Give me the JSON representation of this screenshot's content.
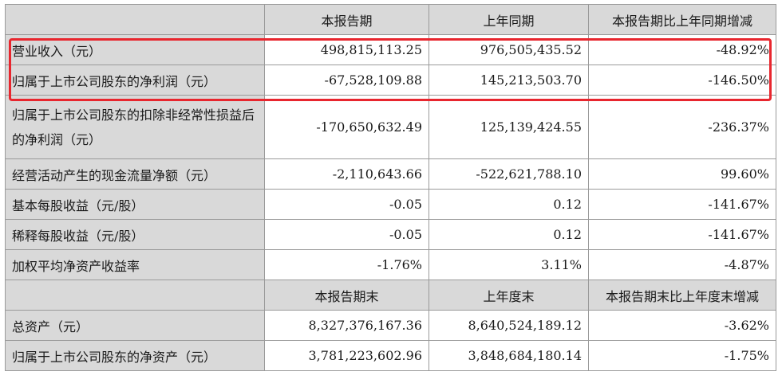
{
  "table": {
    "header1": [
      "本报告期",
      "上年同期",
      "本报告期比上年同期增减"
    ],
    "rows1": [
      {
        "label": "营业收入（元）",
        "cur": "498,815,113.25",
        "prev": "976,505,435.52",
        "chg": "-48.92%"
      },
      {
        "label": "归属于上市公司股东的净利润（元）",
        "cur": "-67,528,109.88",
        "prev": "145,213,503.70",
        "chg": "-146.50%"
      },
      {
        "label": "归属于上市公司股东的扣除非经常性损益后的净利润（元）",
        "cur": "-170,650,632.49",
        "prev": "125,139,424.55",
        "chg": "-236.37%"
      },
      {
        "label": "经营活动产生的现金流量净额（元）",
        "cur": "-2,110,643.66",
        "prev": "-522,621,788.10",
        "chg": "99.60%"
      },
      {
        "label": "基本每股收益（元/股）",
        "cur": "-0.05",
        "prev": "0.12",
        "chg": "-141.67%"
      },
      {
        "label": "稀释每股收益（元/股）",
        "cur": "-0.05",
        "prev": "0.12",
        "chg": "-141.67%"
      },
      {
        "label": "加权平均净资产收益率",
        "cur": "-1.76%",
        "prev": "3.11%",
        "chg": "-4.87%"
      }
    ],
    "header2": [
      "本报告期末",
      "上年度末",
      "本报告期末比上年度末增减"
    ],
    "rows2": [
      {
        "label": "总资产（元）",
        "cur": "8,327,376,167.36",
        "prev": "8,640,524,189.12",
        "chg": "-3.62%"
      },
      {
        "label": "归属于上市公司股东的净资产（元）",
        "cur": "3,781,223,602.96",
        "prev": "3,848,684,180.14",
        "chg": "-1.75%"
      }
    ]
  },
  "highlight_color": "#e8262e"
}
